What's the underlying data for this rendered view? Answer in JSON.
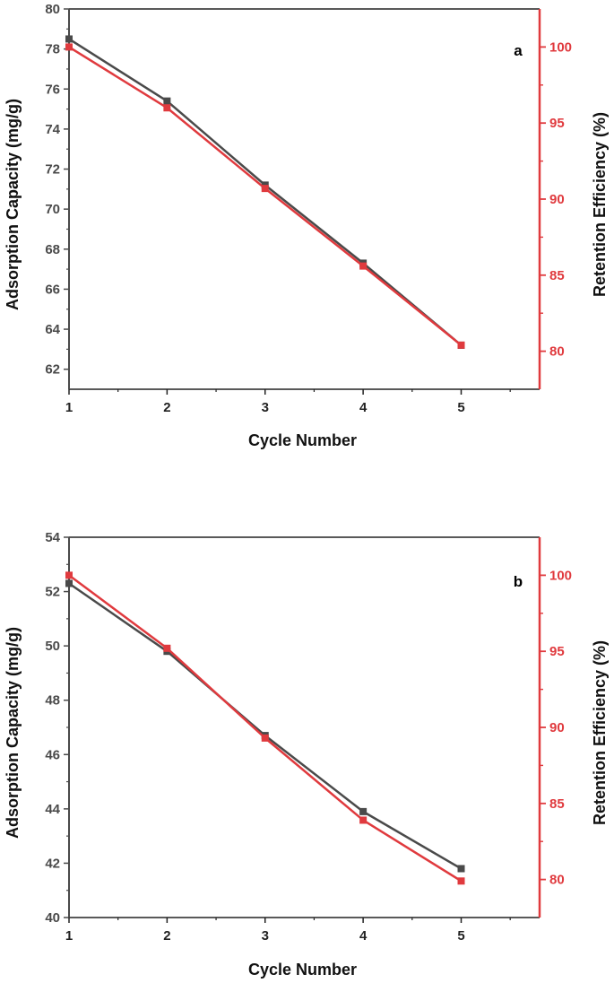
{
  "colors": {
    "left_axis": "#4a4a4a",
    "right_axis": "#e03a3e",
    "frame": "#222222"
  },
  "chart_data": [
    {
      "type": "line",
      "panel_label": "a",
      "xlabel": "Cycle Number",
      "ylabel_left": "Adsorption Capacity (mg/g)",
      "ylabel_right": "Retention Efficiency (%)",
      "x": [
        1,
        2,
        3,
        4,
        5
      ],
      "xlim": [
        1,
        5.8
      ],
      "ylim_left": [
        61,
        80
      ],
      "ylim_right": [
        77.5,
        102.5
      ],
      "left_ticks": [
        62,
        64,
        66,
        68,
        70,
        72,
        74,
        76,
        78,
        80
      ],
      "right_ticks": [
        80,
        85,
        90,
        95,
        100
      ],
      "series": [
        {
          "name": "",
          "axis": "left",
          "color": "#4a4a4a",
          "values": [
            78.5,
            75.4,
            71.2,
            67.3,
            63.2
          ]
        },
        {
          "name": "",
          "axis": "right",
          "color": "#e03a3e",
          "values": [
            100,
            96,
            90.7,
            85.6,
            80.4
          ]
        }
      ]
    },
    {
      "type": "line",
      "panel_label": "b",
      "xlabel": "Cycle Number",
      "ylabel_left": "Adsorption Capacity (mg/g)",
      "ylabel_right": "Retention Efficiency (%)",
      "x": [
        1,
        2,
        3,
        4,
        5
      ],
      "xlim": [
        1,
        5.8
      ],
      "ylim_left": [
        40,
        54
      ],
      "ylim_right": [
        77.5,
        102.5
      ],
      "left_ticks": [
        40,
        42,
        44,
        46,
        48,
        50,
        52,
        54
      ],
      "right_ticks": [
        80,
        85,
        90,
        95,
        100
      ],
      "series": [
        {
          "name": "",
          "axis": "left",
          "color": "#4a4a4a",
          "values": [
            52.3,
            49.8,
            46.7,
            43.9,
            41.8
          ]
        },
        {
          "name": "",
          "axis": "right",
          "color": "#e03a3e",
          "values": [
            100,
            95.2,
            89.3,
            83.9,
            79.9
          ]
        }
      ]
    }
  ]
}
